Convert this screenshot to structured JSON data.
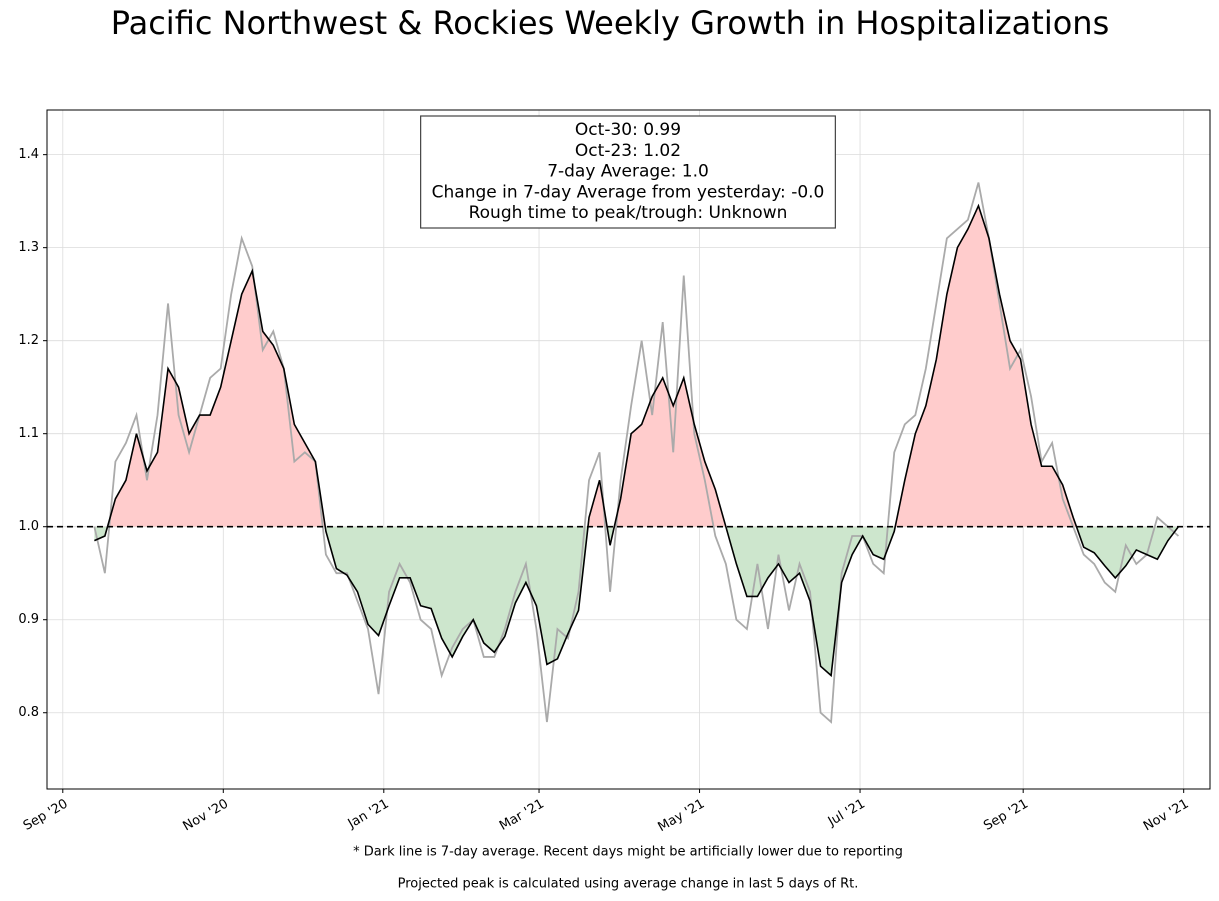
{
  "chart_data": {
    "type": "line",
    "title": "Pacific Northwest & Rockies Weekly Growth in Hospitalizations",
    "annotation": [
      "Oct-30: 0.99",
      "Oct-23: 1.02",
      "7-day Average: 1.0",
      "Change in 7-day Average from yesterday: -0.0",
      "Rough time to peak/trough: Unknown"
    ],
    "notes": [
      "* Dark line is 7-day average. Recent days might be artificially lower due to reporting",
      "Projected peak is calculated using average change in last 5 days of Rt."
    ],
    "x": [
      "2020-09-13",
      "2020-09-17",
      "2020-09-21",
      "2020-09-25",
      "2020-09-29",
      "2020-10-03",
      "2020-10-07",
      "2020-10-11",
      "2020-10-15",
      "2020-10-19",
      "2020-10-23",
      "2020-10-27",
      "2020-10-31",
      "2020-11-04",
      "2020-11-08",
      "2020-11-12",
      "2020-11-16",
      "2020-11-20",
      "2020-11-24",
      "2020-11-28",
      "2020-12-02",
      "2020-12-06",
      "2020-12-10",
      "2020-12-14",
      "2020-12-18",
      "2020-12-22",
      "2020-12-26",
      "2020-12-30",
      "2021-01-03",
      "2021-01-07",
      "2021-01-11",
      "2021-01-15",
      "2021-01-19",
      "2021-01-23",
      "2021-01-27",
      "2021-01-31",
      "2021-02-04",
      "2021-02-08",
      "2021-02-12",
      "2021-02-16",
      "2021-02-20",
      "2021-02-24",
      "2021-02-28",
      "2021-03-04",
      "2021-03-08",
      "2021-03-12",
      "2021-03-16",
      "2021-03-20",
      "2021-03-24",
      "2021-03-28",
      "2021-04-01",
      "2021-04-05",
      "2021-04-09",
      "2021-04-13",
      "2021-04-17",
      "2021-04-21",
      "2021-04-25",
      "2021-04-29",
      "2021-05-03",
      "2021-05-07",
      "2021-05-11",
      "2021-05-15",
      "2021-05-19",
      "2021-05-23",
      "2021-05-27",
      "2021-05-31",
      "2021-06-04",
      "2021-06-08",
      "2021-06-12",
      "2021-06-16",
      "2021-06-20",
      "2021-06-24",
      "2021-06-28",
      "2021-07-02",
      "2021-07-06",
      "2021-07-10",
      "2021-07-14",
      "2021-07-18",
      "2021-07-22",
      "2021-07-26",
      "2021-07-30",
      "2021-08-03",
      "2021-08-07",
      "2021-08-11",
      "2021-08-15",
      "2021-08-19",
      "2021-08-23",
      "2021-08-27",
      "2021-08-31",
      "2021-09-04",
      "2021-09-08",
      "2021-09-12",
      "2021-09-16",
      "2021-09-20",
      "2021-09-24",
      "2021-09-28",
      "2021-10-02",
      "2021-10-06",
      "2021-10-10",
      "2021-10-14",
      "2021-10-18",
      "2021-10-22",
      "2021-10-26",
      "2021-10-30"
    ],
    "series": [
      {
        "color": "#aaaaaa",
        "values": [
          1.0,
          0.95,
          1.07,
          1.09,
          1.12,
          1.05,
          1.12,
          1.24,
          1.12,
          1.08,
          1.12,
          1.16,
          1.17,
          1.25,
          1.31,
          1.28,
          1.19,
          1.21,
          1.17,
          1.07,
          1.08,
          1.07,
          0.97,
          0.95,
          0.95,
          0.92,
          0.89,
          0.82,
          0.93,
          0.96,
          0.94,
          0.9,
          0.89,
          0.84,
          0.87,
          0.89,
          0.9,
          0.86,
          0.86,
          0.89,
          0.93,
          0.96,
          0.89,
          0.79,
          0.89,
          0.88,
          0.93,
          1.05,
          1.08,
          0.93,
          1.05,
          1.13,
          1.2,
          1.12,
          1.22,
          1.08,
          1.27,
          1.1,
          1.05,
          0.99,
          0.96,
          0.9,
          0.89,
          0.96,
          0.89,
          0.97,
          0.91,
          0.96,
          0.93,
          0.8,
          0.79,
          0.95,
          0.99,
          0.99,
          0.96,
          0.95,
          1.08,
          1.11,
          1.12,
          1.17,
          1.24,
          1.31,
          1.32,
          1.33,
          1.37,
          1.31,
          1.24,
          1.17,
          1.19,
          1.14,
          1.07,
          1.09,
          1.03,
          1.0,
          0.97,
          0.96,
          0.94,
          0.93,
          0.98,
          0.96,
          0.97,
          1.01,
          1.0,
          0.99
        ]
      },
      {
        "color": "#000000",
        "values": [
          0.985,
          0.99,
          1.03,
          1.05,
          1.1,
          1.06,
          1.08,
          1.17,
          1.15,
          1.1,
          1.12,
          1.12,
          1.15,
          1.2,
          1.25,
          1.275,
          1.21,
          1.195,
          1.17,
          1.11,
          1.09,
          1.07,
          0.995,
          0.955,
          0.948,
          0.93,
          0.895,
          0.883,
          0.915,
          0.945,
          0.945,
          0.915,
          0.912,
          0.88,
          0.86,
          0.882,
          0.9,
          0.875,
          0.865,
          0.882,
          0.918,
          0.94,
          0.915,
          0.852,
          0.858,
          0.885,
          0.91,
          1.01,
          1.05,
          0.98,
          1.03,
          1.1,
          1.11,
          1.14,
          1.16,
          1.13,
          1.16,
          1.11,
          1.07,
          1.04,
          1.0,
          0.96,
          0.925,
          0.925,
          0.945,
          0.96,
          0.94,
          0.95,
          0.92,
          0.85,
          0.84,
          0.94,
          0.97,
          0.99,
          0.97,
          0.965,
          0.995,
          1.05,
          1.1,
          1.13,
          1.18,
          1.25,
          1.3,
          1.32,
          1.345,
          1.31,
          1.25,
          1.2,
          1.18,
          1.11,
          1.065,
          1.065,
          1.045,
          1.01,
          0.978,
          0.972,
          0.958,
          0.945,
          0.958,
          0.975,
          0.97,
          0.965,
          0.985,
          1.0
        ]
      }
    ],
    "reference_line": 1,
    "above_color": "#ffcccc",
    "below_color": "#cde6cd",
    "xlim": [
      "2020-08-26",
      "2021-11-11"
    ],
    "xticks": [
      {
        "value": "2020-09-01",
        "label": "Sep '20"
      },
      {
        "value": "2020-11-01",
        "label": "Nov '20"
      },
      {
        "value": "2021-01-01",
        "label": "Jan '21"
      },
      {
        "value": "2021-03-01",
        "label": "Mar '21"
      },
      {
        "value": "2021-05-01",
        "label": "May '21"
      },
      {
        "value": "2021-07-01",
        "label": "Jul '21"
      },
      {
        "value": "2021-09-01",
        "label": "Sep '21"
      },
      {
        "value": "2021-11-01",
        "label": "Nov '21"
      }
    ],
    "ylim": [
      0.718,
      1.448
    ],
    "yticks": [
      0.8,
      0.9,
      {
        "value": 1,
        "label": "1.0"
      },
      1.1,
      1.2,
      1.3,
      1.4
    ],
    "grid": true
  }
}
